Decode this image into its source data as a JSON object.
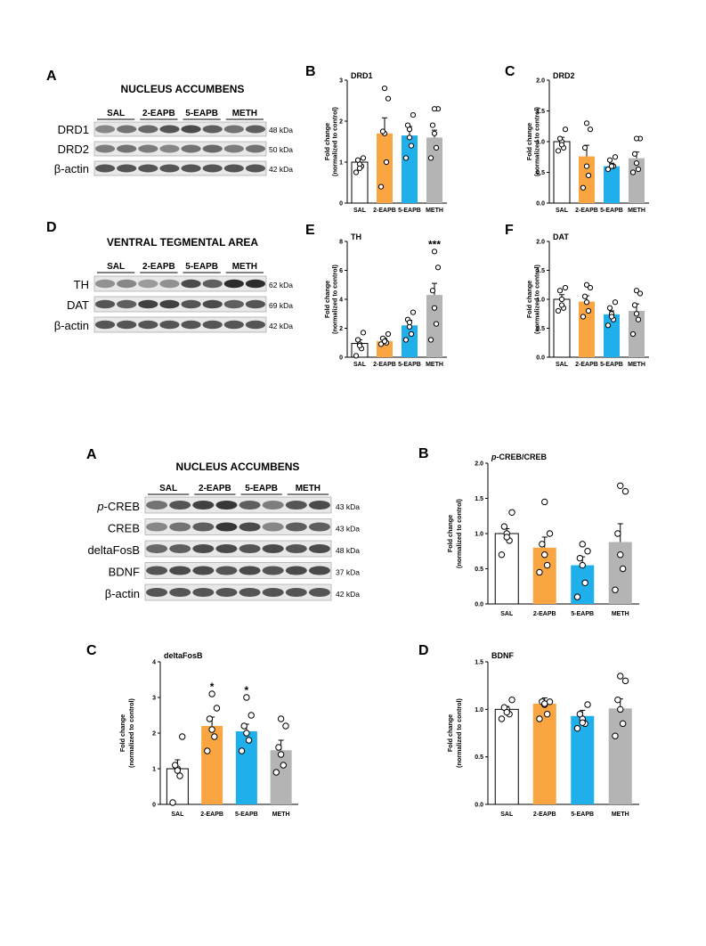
{
  "colors": {
    "SAL": "#ffffff",
    "2-EAPB": "#f9a541",
    "5-EAPB": "#1fb0ec",
    "METH": "#b4b4b4"
  },
  "blots": [
    {
      "id": "fig1A",
      "letter": "A",
      "title": "NUCLEUS ACCUMBENS",
      "groups": [
        "SAL",
        "2-EAPB",
        "5-EAPB",
        "METH"
      ],
      "rows": [
        {
          "label": "DRD1",
          "kda": "48 kDa"
        },
        {
          "label": "DRD2",
          "kda": "50 kDa"
        },
        {
          "label": "β-actin",
          "kda": "42 kDa"
        }
      ]
    },
    {
      "id": "fig1D",
      "letter": "D",
      "title": "VENTRAL TEGMENTAL AREA",
      "groups": [
        "SAL",
        "2-EAPB",
        "5-EAPB",
        "METH"
      ],
      "rows": [
        {
          "label": "TH",
          "kda": "62 kDa"
        },
        {
          "label": "DAT",
          "kda": "69 kDa"
        },
        {
          "label": "β-actin",
          "kda": "42 kDa"
        }
      ]
    },
    {
      "id": "fig2A",
      "letter": "A",
      "title": "NUCLEUS ACCUMBENS",
      "groups": [
        "SAL",
        "2-EAPB",
        "5-EAPB",
        "METH"
      ],
      "rows": [
        {
          "label": "p-CREB",
          "italicPrefix": "p",
          "kda": "43 kDa"
        },
        {
          "label": "CREB",
          "kda": "43 kDa"
        },
        {
          "label": "deltaFosB",
          "kda": "48 kDa"
        },
        {
          "label": "BDNF",
          "kda": "37 kDa"
        },
        {
          "label": "β-actin",
          "kda": "42 kDa"
        }
      ]
    }
  ],
  "chart_data": [
    {
      "id": "fig1B",
      "letter": "B",
      "type": "bar",
      "title": "DRD1",
      "ylabel": "Fold change\n(normalized to control)",
      "ylim": [
        0,
        3
      ],
      "yticks": [
        0,
        1,
        2,
        3
      ],
      "yticklabels": [
        "0",
        "1",
        "2",
        "3"
      ],
      "categories": [
        "SAL",
        "2-EAPB",
        "5-EAPB",
        "METH"
      ],
      "values": [
        1.0,
        1.7,
        1.65,
        1.6
      ],
      "sem": [
        0.08,
        0.38,
        0.22,
        0.18
      ],
      "points": [
        [
          0.75,
          0.9,
          0.95,
          1.05,
          1.1,
          0.85
        ],
        [
          0.4,
          1.0,
          1.7,
          1.75,
          2.55,
          2.8
        ],
        [
          1.1,
          1.4,
          1.8,
          1.9,
          2.15,
          1.6
        ],
        [
          1.1,
          1.35,
          1.7,
          1.9,
          2.3,
          2.3
        ]
      ],
      "annotations": [
        "",
        "",
        "",
        ""
      ]
    },
    {
      "id": "fig1C",
      "letter": "C",
      "type": "bar",
      "title": "DRD2",
      "ylabel": "Fold change\n(normalized to control)",
      "ylim": [
        0,
        2
      ],
      "yticks": [
        0,
        0.5,
        1,
        1.5,
        2
      ],
      "yticklabels": [
        "0.0",
        "0.5",
        "1.0",
        "1.5",
        "2.0"
      ],
      "categories": [
        "SAL",
        "2-EAPB",
        "5-EAPB",
        "METH"
      ],
      "values": [
        1.0,
        0.76,
        0.6,
        0.73
      ],
      "sem": [
        0.07,
        0.18,
        0.05,
        0.1
      ],
      "points": [
        [
          0.85,
          0.9,
          1.0,
          1.05,
          1.2,
          0.95
        ],
        [
          0.25,
          0.45,
          0.6,
          0.9,
          1.2,
          1.3
        ],
        [
          0.55,
          0.6,
          0.6,
          0.7,
          0.75,
          0.6
        ],
        [
          0.5,
          0.55,
          0.65,
          0.8,
          1.05,
          1.05
        ]
      ],
      "annotations": [
        "",
        "",
        "",
        ""
      ]
    },
    {
      "id": "fig1E",
      "letter": "E",
      "type": "bar",
      "title": "TH",
      "ylabel": "Fold change\n(normalized to control)",
      "ylim": [
        0,
        8
      ],
      "yticks": [
        0,
        2,
        4,
        6,
        8
      ],
      "yticklabels": [
        "0",
        "2",
        "4",
        "6",
        "8"
      ],
      "categories": [
        "SAL",
        "2-EAPB",
        "5-EAPB",
        "METH"
      ],
      "values": [
        0.95,
        1.1,
        2.2,
        4.3
      ],
      "sem": [
        0.25,
        0.12,
        0.35,
        0.8
      ],
      "points": [
        [
          0.1,
          0.6,
          0.9,
          1.2,
          1.7,
          0.8
        ],
        [
          0.9,
          1.0,
          1.2,
          1.3,
          1.6,
          1.1
        ],
        [
          1.2,
          1.6,
          2.1,
          2.6,
          3.1,
          2.4
        ],
        [
          1.2,
          2.3,
          3.4,
          4.6,
          6.2,
          7.3
        ]
      ],
      "annotations": [
        "",
        "",
        "",
        "***"
      ]
    },
    {
      "id": "fig1F",
      "letter": "F",
      "type": "bar",
      "title": "DAT",
      "ylabel": "Fold change\n(normalized to control)",
      "ylim": [
        0,
        2
      ],
      "yticks": [
        0,
        0.5,
        1,
        1.5,
        2
      ],
      "yticklabels": [
        "0.0",
        "0.5",
        "1.0",
        "1.5",
        "2.0"
      ],
      "categories": [
        "SAL",
        "2-EAPB",
        "5-EAPB",
        "METH"
      ],
      "values": [
        1.0,
        0.96,
        0.74,
        0.8
      ],
      "sem": [
        0.08,
        0.1,
        0.06,
        0.12
      ],
      "points": [
        [
          0.8,
          0.85,
          1.0,
          1.15,
          1.2,
          0.9
        ],
        [
          0.7,
          0.8,
          0.95,
          1.05,
          1.2,
          1.25
        ],
        [
          0.55,
          0.65,
          0.75,
          0.85,
          0.95,
          0.7
        ],
        [
          0.4,
          0.65,
          0.75,
          0.9,
          1.1,
          1.15
        ]
      ],
      "annotations": [
        "",
        "",
        "",
        ""
      ]
    },
    {
      "id": "fig2B",
      "letter": "B",
      "type": "bar",
      "title": "p-CREB/CREB",
      "titleItalicPrefix": "p",
      "ylabel": "Fold change\n(normalized to control)",
      "ylim": [
        0,
        2
      ],
      "yticks": [
        0,
        0.5,
        1,
        1.5,
        2
      ],
      "yticklabels": [
        "0.0",
        "0.5",
        "1.0",
        "1.5",
        "2.0"
      ],
      "categories": [
        "SAL",
        "2-EAPB",
        "5-EAPB",
        "METH"
      ],
      "values": [
        1.0,
        0.8,
        0.55,
        0.88
      ],
      "sem": [
        0.07,
        0.15,
        0.12,
        0.26
      ],
      "points": [
        [
          0.7,
          0.9,
          1.0,
          1.1,
          1.3,
          0.95
        ],
        [
          0.45,
          0.55,
          0.7,
          0.85,
          1.0,
          1.45
        ],
        [
          0.1,
          0.3,
          0.55,
          0.65,
          0.75,
          0.85
        ],
        [
          0.2,
          0.5,
          0.7,
          1.0,
          1.6,
          1.68
        ]
      ],
      "annotations": [
        "",
        "",
        "",
        ""
      ]
    },
    {
      "id": "fig2C",
      "letter": "C",
      "type": "bar",
      "title": "deltaFosB",
      "ylabel": "Fold change\n(normalized to control)",
      "ylim": [
        0,
        4
      ],
      "yticks": [
        0,
        1,
        2,
        3,
        4
      ],
      "yticklabels": [
        "0",
        "1",
        "2",
        "3",
        "4"
      ],
      "categories": [
        "SAL",
        "2-EAPB",
        "5-EAPB",
        "METH"
      ],
      "values": [
        1.0,
        2.2,
        2.05,
        1.52
      ],
      "sem": [
        0.25,
        0.25,
        0.2,
        0.28
      ],
      "points": [
        [
          0.05,
          0.8,
          1.0,
          1.1,
          1.9,
          0.95
        ],
        [
          1.5,
          1.9,
          2.1,
          2.4,
          2.7,
          3.1
        ],
        [
          1.5,
          1.8,
          2.0,
          2.2,
          2.5,
          3.0
        ],
        [
          0.9,
          1.1,
          1.4,
          1.6,
          2.2,
          2.4
        ]
      ],
      "annotations": [
        "",
        "*",
        "*",
        ""
      ]
    },
    {
      "id": "fig2D",
      "letter": "D",
      "type": "bar",
      "title": "BDNF",
      "ylabel": "Fold change\n(normalized to control)",
      "ylim": [
        0,
        1.5
      ],
      "yticks": [
        0,
        0.5,
        1,
        1.5
      ],
      "yticklabels": [
        "0.0",
        "0.5",
        "1.0",
        "1.5"
      ],
      "categories": [
        "SAL",
        "2-EAPB",
        "5-EAPB",
        "METH"
      ],
      "values": [
        1.0,
        1.06,
        0.93,
        1.01
      ],
      "sem": [
        0.03,
        0.06,
        0.06,
        0.1
      ],
      "points": [
        [
          0.9,
          0.95,
          1.0,
          1.02,
          1.1,
          0.97
        ],
        [
          0.9,
          0.95,
          1.05,
          1.08,
          1.08,
          1.06
        ],
        [
          0.8,
          0.85,
          0.9,
          0.95,
          1.05,
          0.86
        ],
        [
          0.72,
          0.85,
          1.0,
          1.1,
          1.3,
          1.35
        ]
      ],
      "annotations": [
        "",
        "",
        "",
        ""
      ]
    }
  ]
}
